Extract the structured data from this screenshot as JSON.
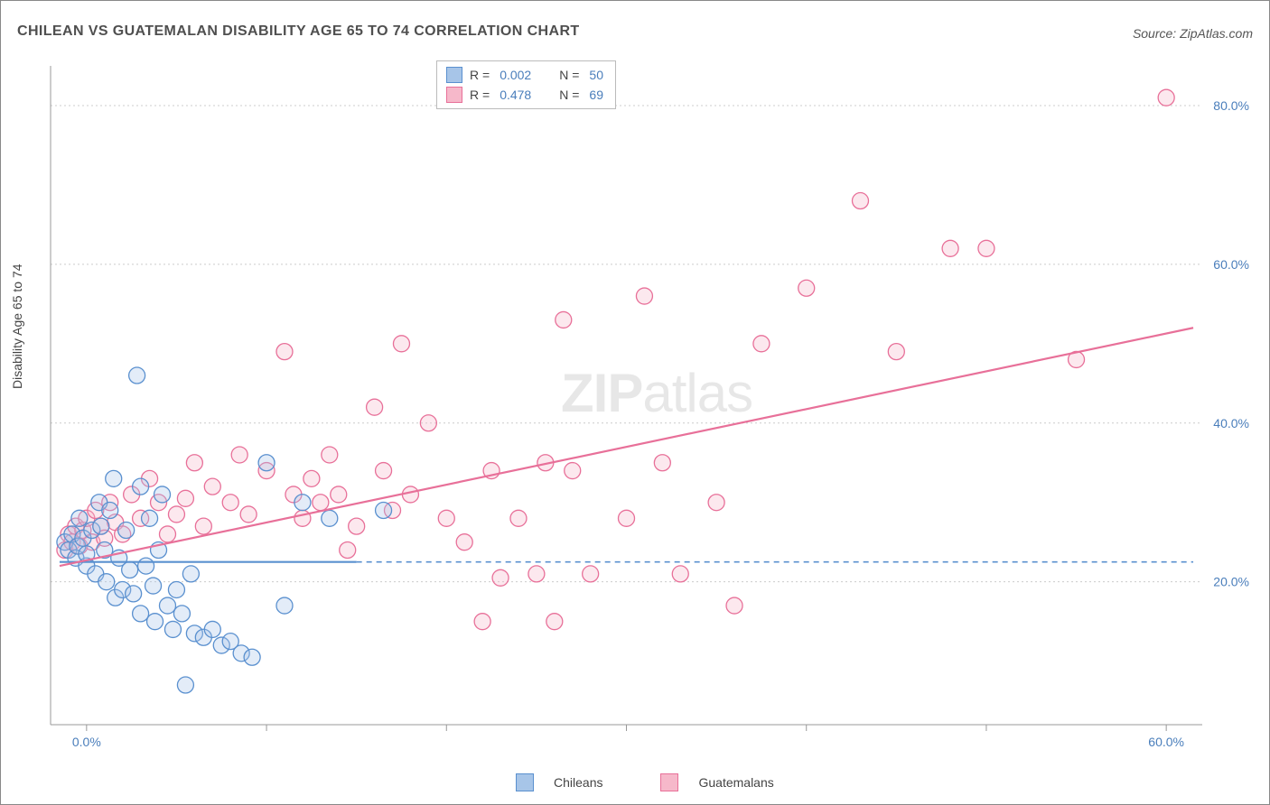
{
  "title": "CHILEAN VS GUATEMALAN DISABILITY AGE 65 TO 74 CORRELATION CHART",
  "source_label": "Source: ",
  "source_value": "ZipAtlas.com",
  "ylabel": "Disability Age 65 to 74",
  "chart": {
    "type": "scatter",
    "background_color": "#ffffff",
    "grid_color": "#cccccc",
    "axis_color": "#999999",
    "xlim": [
      -2,
      62
    ],
    "ylim": [
      2,
      85
    ],
    "xticks": [
      0,
      10,
      20,
      30,
      40,
      50,
      60
    ],
    "xtick_labels": [
      "0.0%",
      "",
      "",
      "",
      "",
      "",
      "60.0%"
    ],
    "yticks": [
      20,
      40,
      60,
      80
    ],
    "ytick_labels": [
      "20.0%",
      "40.0%",
      "60.0%",
      "80.0%"
    ],
    "marker_radius": 9,
    "marker_stroke_width": 1.3,
    "marker_fill_opacity": 0.32,
    "tick_label_color": "#4a7ebb",
    "tick_label_fontsize": 14
  },
  "series": {
    "chileans": {
      "label": "Chileans",
      "color": "#5a90cf",
      "fill": "#a7c5e8",
      "R": "0.002",
      "N": "50",
      "trend": {
        "x1": -1.5,
        "y1": 22.5,
        "x2": 15,
        "y2": 22.5,
        "width": 2.2
      },
      "trend_dash": {
        "x1": 15,
        "y1": 22.5,
        "x2": 61.5,
        "y2": 22.5,
        "width": 1.6
      },
      "points": [
        [
          -1.2,
          25
        ],
        [
          -1,
          24
        ],
        [
          -0.8,
          26
        ],
        [
          -0.6,
          23
        ],
        [
          -0.5,
          24.5
        ],
        [
          -0.4,
          28
        ],
        [
          -0.2,
          25.5
        ],
        [
          0,
          22
        ],
        [
          0,
          23.5
        ],
        [
          0.3,
          26.5
        ],
        [
          0.5,
          21
        ],
        [
          0.7,
          30
        ],
        [
          0.8,
          27
        ],
        [
          1,
          24
        ],
        [
          1.1,
          20
        ],
        [
          1.3,
          29
        ],
        [
          1.5,
          33
        ],
        [
          1.6,
          18
        ],
        [
          1.8,
          23
        ],
        [
          2,
          19
        ],
        [
          2.2,
          26.5
        ],
        [
          2.4,
          21.5
        ],
        [
          2.6,
          18.5
        ],
        [
          2.8,
          46
        ],
        [
          3,
          32
        ],
        [
          3,
          16
        ],
        [
          3.3,
          22
        ],
        [
          3.5,
          28
        ],
        [
          3.7,
          19.5
        ],
        [
          3.8,
          15
        ],
        [
          4,
          24
        ],
        [
          4.2,
          31
        ],
        [
          4.5,
          17
        ],
        [
          4.8,
          14
        ],
        [
          5,
          19
        ],
        [
          5.3,
          16
        ],
        [
          5.5,
          7
        ],
        [
          5.8,
          21
        ],
        [
          6,
          13.5
        ],
        [
          6.5,
          13
        ],
        [
          7,
          14
        ],
        [
          7.5,
          12
        ],
        [
          8,
          12.5
        ],
        [
          8.6,
          11
        ],
        [
          9.2,
          10.5
        ],
        [
          10,
          35
        ],
        [
          11,
          17
        ],
        [
          12,
          30
        ],
        [
          13.5,
          28
        ],
        [
          16.5,
          29
        ]
      ]
    },
    "guatemalans": {
      "label": "Guatemalans",
      "color": "#e87099",
      "fill": "#f6b8ca",
      "R": "0.478",
      "N": "69",
      "trend": {
        "x1": -1.5,
        "y1": 22,
        "x2": 61.5,
        "y2": 52,
        "width": 2.2
      },
      "points": [
        [
          -1.2,
          24
        ],
        [
          -1,
          26
        ],
        [
          -0.8,
          25
        ],
        [
          -0.6,
          27
        ],
        [
          -0.4,
          24.5
        ],
        [
          -0.2,
          26.5
        ],
        [
          0,
          28
        ],
        [
          0.3,
          25
        ],
        [
          0.5,
          29
        ],
        [
          0.8,
          27
        ],
        [
          1,
          25.5
        ],
        [
          1.3,
          30
        ],
        [
          1.6,
          27.5
        ],
        [
          2,
          26
        ],
        [
          2.5,
          31
        ],
        [
          3,
          28
        ],
        [
          3.5,
          33
        ],
        [
          4,
          30
        ],
        [
          4.5,
          26
        ],
        [
          5,
          28.5
        ],
        [
          5.5,
          30.5
        ],
        [
          6,
          35
        ],
        [
          6.5,
          27
        ],
        [
          7,
          32
        ],
        [
          8,
          30
        ],
        [
          8.5,
          36
        ],
        [
          9,
          28.5
        ],
        [
          10,
          34
        ],
        [
          11,
          49
        ],
        [
          11.5,
          31
        ],
        [
          12,
          28
        ],
        [
          12.5,
          33
        ],
        [
          13,
          30
        ],
        [
          13.5,
          36
        ],
        [
          14,
          31
        ],
        [
          14.5,
          24
        ],
        [
          15,
          27
        ],
        [
          16,
          42
        ],
        [
          16.5,
          34
        ],
        [
          17,
          29
        ],
        [
          17.5,
          50
        ],
        [
          18,
          31
        ],
        [
          19,
          40
        ],
        [
          20,
          28
        ],
        [
          21,
          25
        ],
        [
          22,
          15
        ],
        [
          22.5,
          34
        ],
        [
          23,
          20.5
        ],
        [
          24,
          28
        ],
        [
          25,
          21
        ],
        [
          25.5,
          35
        ],
        [
          26,
          15
        ],
        [
          26.5,
          53
        ],
        [
          27,
          34
        ],
        [
          28,
          21
        ],
        [
          30,
          28
        ],
        [
          31,
          56
        ],
        [
          32,
          35
        ],
        [
          33,
          21
        ],
        [
          35,
          30
        ],
        [
          36,
          17
        ],
        [
          37.5,
          50
        ],
        [
          40,
          57
        ],
        [
          43,
          68
        ],
        [
          45,
          49
        ],
        [
          48,
          62
        ],
        [
          50,
          62
        ],
        [
          55,
          48
        ],
        [
          60,
          81
        ]
      ]
    }
  },
  "legend_top": {
    "R_label": "R =",
    "N_label": "N ="
  },
  "watermark": {
    "part1": "ZIP",
    "part2": "atlas"
  }
}
